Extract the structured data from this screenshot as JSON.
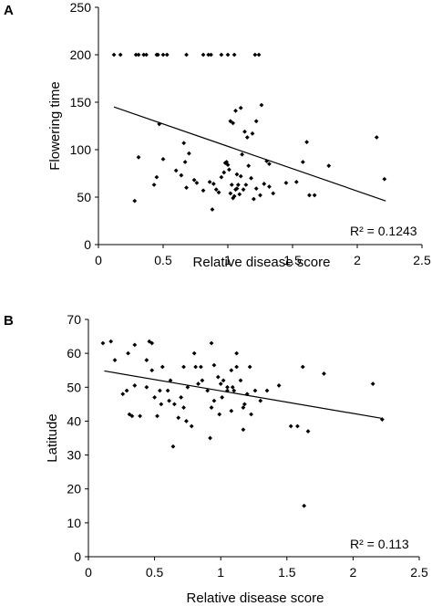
{
  "chart_data": [
    {
      "type": "scatter",
      "panel_label": "A",
      "xlabel": "Relative disease score",
      "ylabel": "Flowering time",
      "xlim": [
        0,
        2.5
      ],
      "ylim": [
        0,
        250
      ],
      "xticks": [
        "0",
        "0.5",
        "1",
        "1.5",
        "2",
        "2.5"
      ],
      "yticks": [
        "0",
        "50",
        "100",
        "150",
        "200",
        "250"
      ],
      "grid": false,
      "annotation": "R² = 0.1243",
      "trendline": {
        "x": [
          0.12,
          2.22
        ],
        "y": [
          145,
          46
        ]
      },
      "x": [
        0.12,
        0.17,
        0.29,
        0.31,
        0.35,
        0.37,
        0.45,
        0.46,
        0.5,
        0.53,
        0.68,
        0.81,
        0.85,
        0.87,
        0.95,
        1.0,
        1.05,
        1.21,
        1.24,
        0.28,
        0.31,
        0.43,
        0.45,
        0.47,
        0.5,
        0.6,
        0.64,
        0.66,
        0.68,
        0.7,
        0.74,
        0.76,
        0.81,
        0.86,
        0.89,
        0.91,
        0.93,
        0.95,
        0.97,
        0.99,
        1.0,
        1.01,
        1.02,
        1.03,
        1.04,
        1.05,
        1.06,
        1.07,
        1.08,
        1.09,
        1.1,
        1.12,
        1.14,
        1.16,
        1.18,
        1.2,
        1.22,
        1.25,
        1.28,
        1.32,
        1.35,
        1.02,
        1.04,
        1.06,
        1.1,
        1.13,
        1.15,
        1.19,
        1.22,
        1.26,
        1.3,
        1.32,
        1.45,
        1.53,
        1.58,
        1.61,
        1.63,
        1.67,
        1.78,
        2.15,
        2.21,
        1.07,
        1.11,
        0.88,
        0.98,
        0.67
      ],
      "y": [
        200,
        200,
        200,
        200,
        200,
        200,
        200,
        200,
        200,
        200,
        200,
        200,
        200,
        200,
        200,
        200,
        200,
        200,
        200,
        46,
        92,
        63,
        71,
        127,
        90,
        78,
        73,
        107,
        60,
        96,
        68,
        65,
        57,
        66,
        64,
        58,
        55,
        71,
        76,
        87,
        84,
        79,
        54,
        63,
        49,
        51,
        58,
        74,
        63,
        53,
        72,
        58,
        63,
        83,
        70,
        48,
        59,
        52,
        64,
        61,
        54,
        130,
        128,
        141,
        144,
        119,
        113,
        117,
        130,
        147,
        88,
        85,
        65,
        66,
        87,
        108,
        52,
        52,
        83,
        113,
        69,
        59,
        95,
        37,
        86,
        87
      ]
    },
    {
      "type": "scatter",
      "panel_label": "B",
      "xlabel": "Relative disease score",
      "ylabel": "Latitude",
      "xlim": [
        0,
        2.5
      ],
      "ylim": [
        0,
        70
      ],
      "xticks": [
        "0",
        "0.5",
        "1",
        "1.5",
        "2",
        "2.5"
      ],
      "yticks": [
        "0",
        "10",
        "20",
        "30",
        "40",
        "50",
        "60",
        "70"
      ],
      "grid": false,
      "annotation": "R² = 0.113",
      "trendline": {
        "x": [
          0.12,
          2.22
        ],
        "y": [
          54.8,
          40.8
        ]
      },
      "x": [
        0.11,
        0.17,
        0.2,
        0.29,
        0.3,
        0.33,
        0.35,
        0.39,
        0.44,
        0.46,
        0.48,
        0.5,
        0.52,
        0.55,
        0.6,
        0.62,
        0.65,
        0.7,
        0.72,
        0.75,
        0.8,
        0.83,
        0.86,
        0.9,
        0.93,
        0.95,
        0.98,
        1.0,
        1.02,
        1.05,
        1.08,
        1.1,
        1.12,
        1.15,
        1.18,
        1.2,
        1.22,
        1.26,
        1.3,
        1.35,
        0.72,
        0.78,
        0.85,
        0.93,
        0.99,
        1.05,
        1.08,
        1.12,
        1.17,
        1.23,
        1.44,
        1.53,
        1.58,
        1.62,
        1.66,
        1.78,
        2.15,
        2.22,
        1.63,
        0.64,
        0.92,
        1.17,
        0.48,
        0.68,
        0.35,
        0.44,
        0.26,
        0.54,
        0.61,
        0.74,
        0.81,
        1.01,
        1.09,
        0.56,
        0.95,
        0.31
      ],
      "y": [
        63,
        63.5,
        58,
        49,
        60,
        41.5,
        62.5,
        41.5,
        58,
        63.5,
        63,
        47,
        41.5,
        45,
        49,
        52,
        45,
        47,
        56,
        50,
        60,
        51,
        52,
        49,
        63,
        56.5,
        53,
        51,
        52,
        50,
        55,
        49,
        56,
        52,
        45,
        48,
        56,
        49,
        46,
        49,
        44,
        38.5,
        56,
        44,
        42,
        49,
        43,
        60,
        44,
        42,
        50.5,
        38.5,
        38.5,
        56,
        37,
        54,
        51,
        40.5,
        15,
        32.5,
        35,
        37.5,
        55,
        41,
        50.5,
        50,
        48,
        49,
        46,
        40,
        56,
        47,
        50,
        56,
        46,
        42
      ]
    }
  ]
}
